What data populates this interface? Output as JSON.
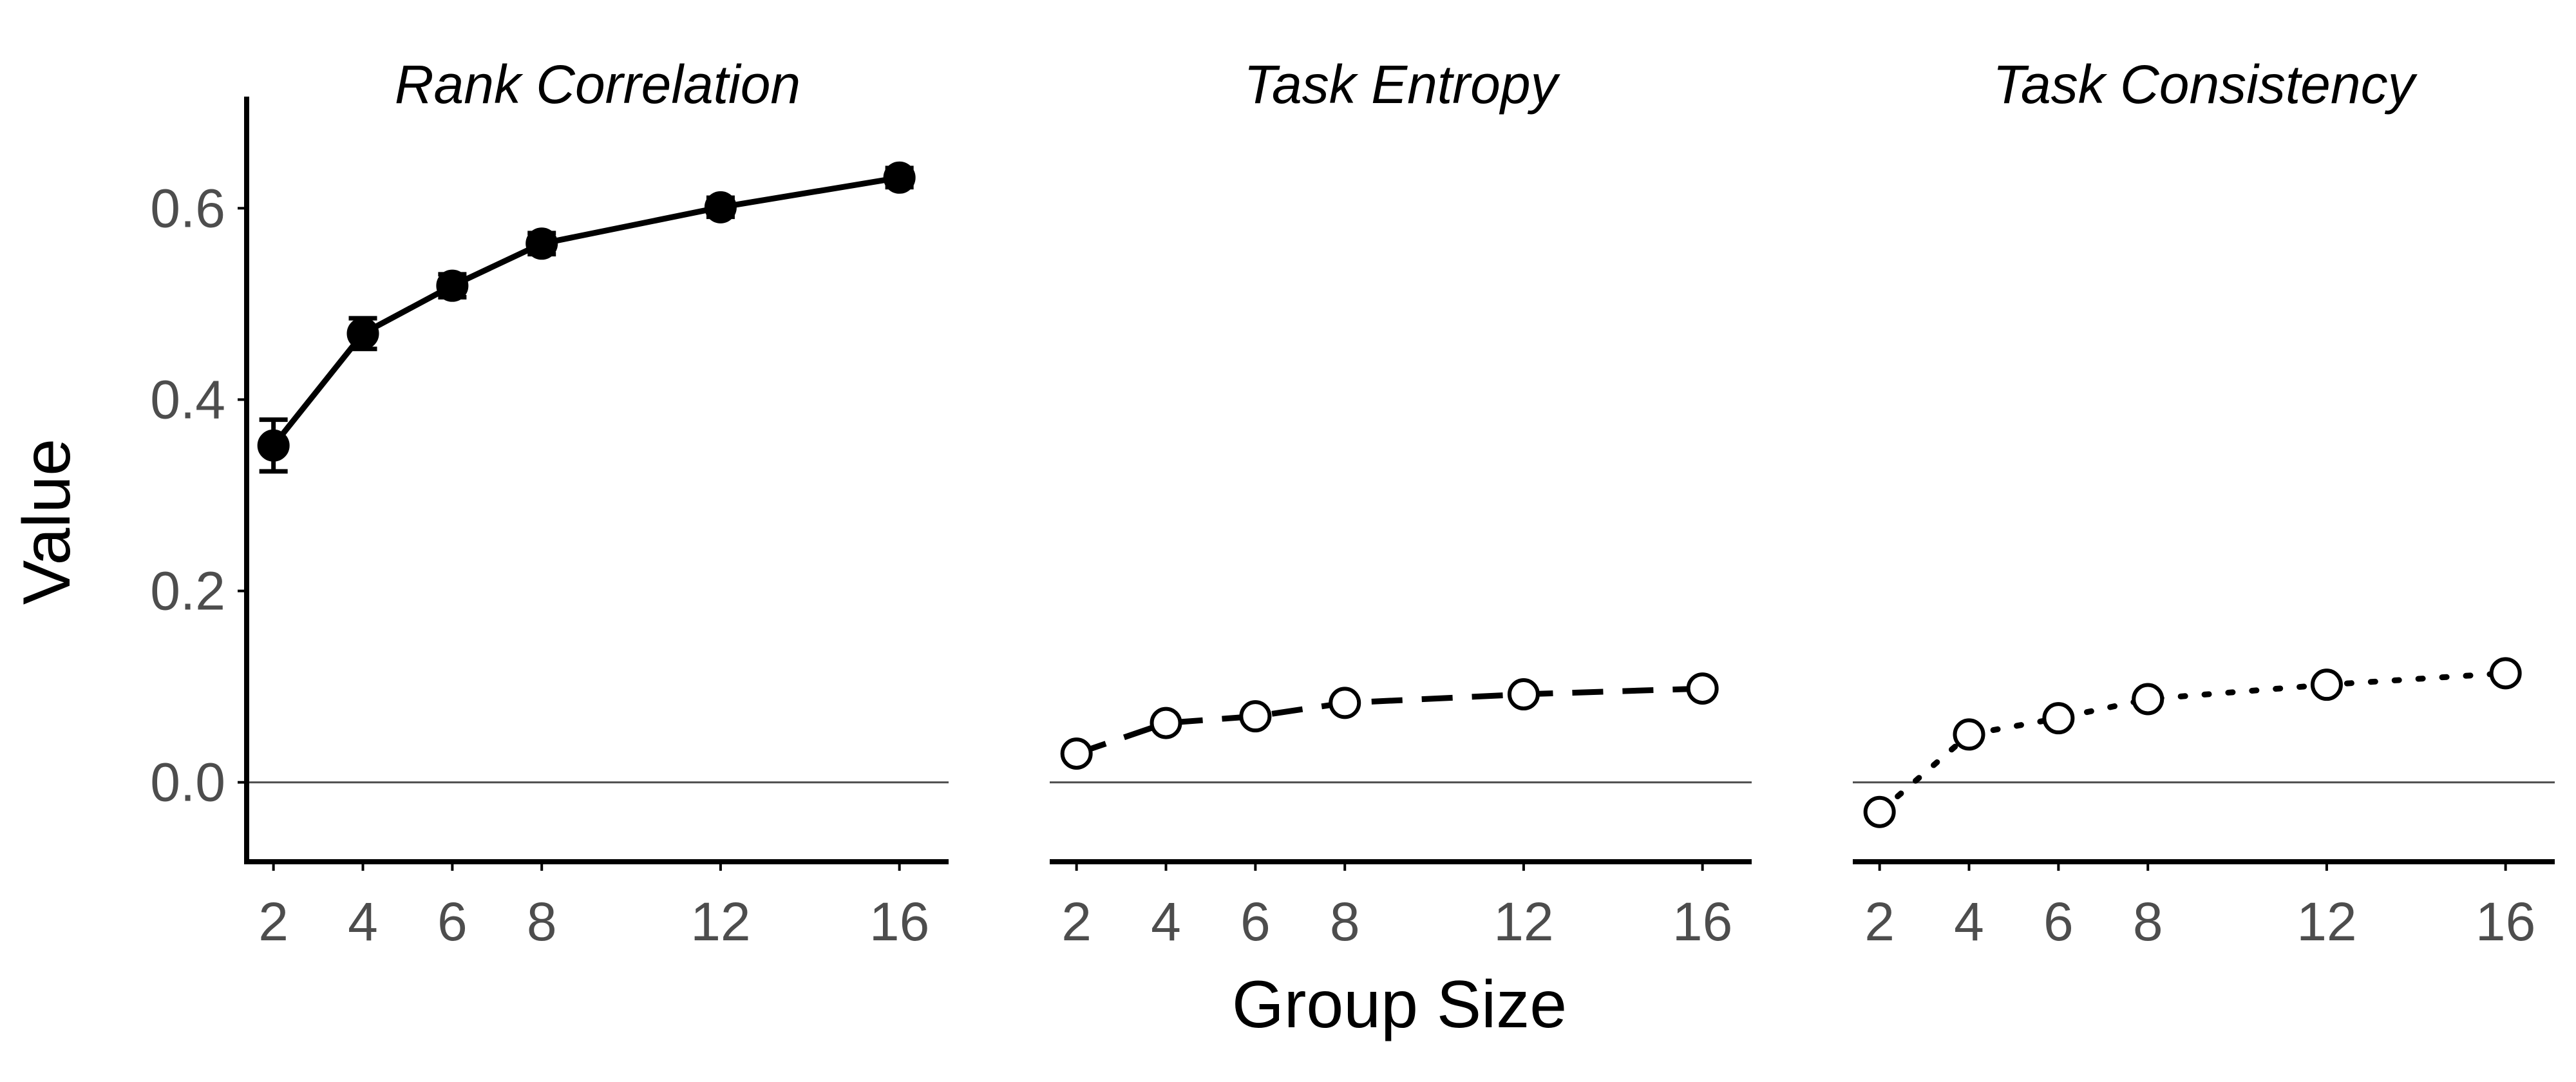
{
  "chart_data": {
    "type": "line",
    "ylabel": "Value",
    "xlabel": "Group Size",
    "x": [
      2,
      4,
      6,
      8,
      12,
      16
    ],
    "xlim": [
      1.4,
      17.1
    ],
    "ylim": [
      -0.083,
      0.683
    ],
    "yticks": [
      0.0,
      0.2,
      0.4,
      0.6
    ],
    "ytick_labels": [
      "0.0",
      "0.2",
      "0.4",
      "0.6"
    ],
    "xticks": [
      2,
      4,
      6,
      8,
      12,
      16
    ],
    "xtick_labels": [
      "2",
      "4",
      "6",
      "8",
      "12",
      "16"
    ],
    "reference_line_y": 0,
    "grid": false,
    "legend": "none",
    "panels": [
      {
        "title": "Rank Correlation",
        "values": [
          0.352,
          0.469,
          0.519,
          0.563,
          0.601,
          0.632
        ],
        "error": [
          0.027,
          0.016,
          0.012,
          0.011,
          0.01,
          0.01
        ],
        "line_style": "solid",
        "marker": "filled-circle",
        "show_y_axis": true
      },
      {
        "title": "Task Entropy",
        "values": [
          0.03,
          0.062,
          0.069,
          0.083,
          0.092,
          0.098
        ],
        "line_style": "dashed",
        "marker": "open-circle",
        "show_y_axis": false
      },
      {
        "title": "Task Consistency",
        "values": [
          -0.031,
          0.05,
          0.067,
          0.087,
          0.102,
          0.114
        ],
        "line_style": "dotted",
        "marker": "open-circle",
        "show_y_axis": false
      }
    ],
    "colors": {
      "line": "#000000",
      "ref_line": "#4d4d4d",
      "tick_text": "#4d4d4d",
      "background": "#ffffff"
    }
  }
}
